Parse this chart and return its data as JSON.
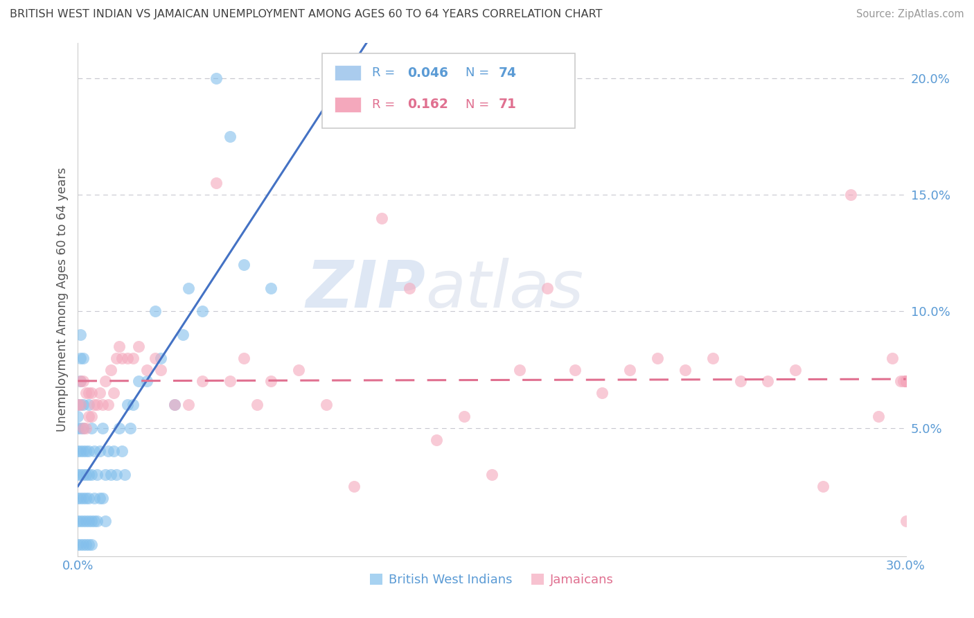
{
  "title": "BRITISH WEST INDIAN VS JAMAICAN UNEMPLOYMENT AMONG AGES 60 TO 64 YEARS CORRELATION CHART",
  "source": "Source: ZipAtlas.com",
  "ylabel": "Unemployment Among Ages 60 to 64 years",
  "xlim": [
    0.0,
    0.3
  ],
  "ylim": [
    -0.005,
    0.215
  ],
  "yticks": [
    0.0,
    0.05,
    0.1,
    0.15,
    0.2
  ],
  "ytick_labels": [
    "",
    "5.0%",
    "10.0%",
    "15.0%",
    "20.0%"
  ],
  "watermark_zip": "ZIP",
  "watermark_atlas": "atlas",
  "blue_color": "#82bfec",
  "pink_color": "#f4a8bc",
  "blue_line_color": "#4472c4",
  "pink_line_color": "#e07090",
  "grid_color": "#c8c8d0",
  "title_color": "#404040",
  "axis_color": "#5b9bd5",
  "ylabel_color": "#555555",
  "source_color": "#999999",
  "bwi_x": [
    0.0,
    0.0,
    0.0,
    0.0,
    0.0,
    0.0,
    0.0,
    0.0,
    0.001,
    0.001,
    0.001,
    0.001,
    0.001,
    0.001,
    0.001,
    0.001,
    0.001,
    0.001,
    0.002,
    0.002,
    0.002,
    0.002,
    0.002,
    0.002,
    0.002,
    0.002,
    0.003,
    0.003,
    0.003,
    0.003,
    0.003,
    0.004,
    0.004,
    0.004,
    0.004,
    0.004,
    0.004,
    0.005,
    0.005,
    0.005,
    0.005,
    0.006,
    0.006,
    0.006,
    0.007,
    0.007,
    0.008,
    0.008,
    0.009,
    0.009,
    0.01,
    0.01,
    0.011,
    0.012,
    0.013,
    0.014,
    0.015,
    0.016,
    0.017,
    0.018,
    0.019,
    0.02,
    0.022,
    0.025,
    0.028,
    0.03,
    0.035,
    0.038,
    0.04,
    0.045,
    0.05,
    0.055,
    0.06,
    0.07
  ],
  "bwi_y": [
    0.0,
    0.01,
    0.02,
    0.03,
    0.04,
    0.05,
    0.055,
    0.06,
    0.0,
    0.01,
    0.02,
    0.03,
    0.04,
    0.05,
    0.06,
    0.07,
    0.08,
    0.09,
    0.0,
    0.01,
    0.02,
    0.03,
    0.04,
    0.05,
    0.06,
    0.08,
    0.0,
    0.01,
    0.02,
    0.03,
    0.04,
    0.0,
    0.01,
    0.02,
    0.03,
    0.04,
    0.06,
    0.0,
    0.01,
    0.03,
    0.05,
    0.01,
    0.02,
    0.04,
    0.01,
    0.03,
    0.02,
    0.04,
    0.02,
    0.05,
    0.01,
    0.03,
    0.04,
    0.03,
    0.04,
    0.03,
    0.05,
    0.04,
    0.03,
    0.06,
    0.05,
    0.06,
    0.07,
    0.07,
    0.1,
    0.08,
    0.06,
    0.09,
    0.11,
    0.1,
    0.2,
    0.175,
    0.12,
    0.11
  ],
  "jam_x": [
    0.0,
    0.001,
    0.001,
    0.002,
    0.002,
    0.003,
    0.003,
    0.004,
    0.004,
    0.005,
    0.005,
    0.006,
    0.007,
    0.008,
    0.009,
    0.01,
    0.011,
    0.012,
    0.013,
    0.014,
    0.015,
    0.016,
    0.018,
    0.02,
    0.022,
    0.025,
    0.028,
    0.03,
    0.035,
    0.04,
    0.045,
    0.05,
    0.055,
    0.06,
    0.065,
    0.07,
    0.08,
    0.09,
    0.1,
    0.11,
    0.12,
    0.13,
    0.14,
    0.15,
    0.16,
    0.17,
    0.18,
    0.19,
    0.2,
    0.21,
    0.22,
    0.23,
    0.24,
    0.25,
    0.26,
    0.27,
    0.28,
    0.29,
    0.295,
    0.298,
    0.299,
    0.3,
    0.3,
    0.3,
    0.3,
    0.3,
    0.3,
    0.3,
    0.3,
    0.3,
    0.3
  ],
  "jam_y": [
    0.06,
    0.06,
    0.07,
    0.05,
    0.07,
    0.05,
    0.065,
    0.055,
    0.065,
    0.055,
    0.065,
    0.06,
    0.06,
    0.065,
    0.06,
    0.07,
    0.06,
    0.075,
    0.065,
    0.08,
    0.085,
    0.08,
    0.08,
    0.08,
    0.085,
    0.075,
    0.08,
    0.075,
    0.06,
    0.06,
    0.07,
    0.155,
    0.07,
    0.08,
    0.06,
    0.07,
    0.075,
    0.06,
    0.025,
    0.14,
    0.11,
    0.045,
    0.055,
    0.03,
    0.075,
    0.11,
    0.075,
    0.065,
    0.075,
    0.08,
    0.075,
    0.08,
    0.07,
    0.07,
    0.075,
    0.025,
    0.15,
    0.055,
    0.08,
    0.07,
    0.07,
    0.01,
    0.07,
    0.07,
    0.07,
    0.07,
    0.07,
    0.07,
    0.07,
    0.07,
    0.07
  ]
}
